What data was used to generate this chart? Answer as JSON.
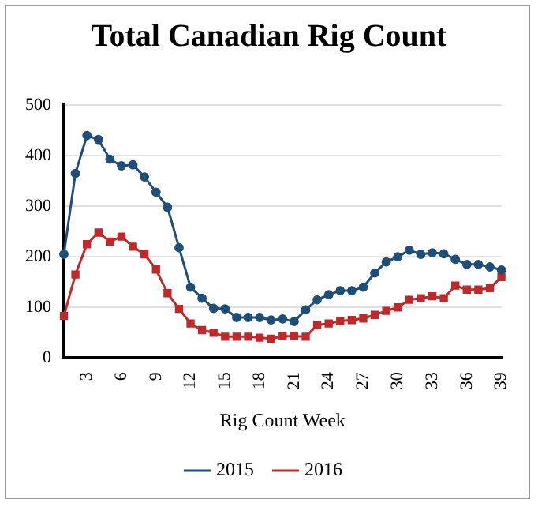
{
  "chart_data": {
    "type": "line",
    "title": "Total Canadian Rig Count",
    "xlabel": "Rig Count Week",
    "categories": [
      null,
      null,
      "3",
      null,
      null,
      "6",
      null,
      null,
      "9",
      null,
      null,
      "12",
      null,
      null,
      "15",
      null,
      null,
      "18",
      null,
      null,
      "21",
      null,
      null,
      "24",
      null,
      null,
      "27",
      null,
      null,
      "30",
      null,
      null,
      "33",
      null,
      null,
      "36",
      null,
      null,
      "39"
    ],
    "series": [
      {
        "name": "2015",
        "color": "#1f4e79",
        "marker": "circle",
        "values": [
          205,
          365,
          440,
          432,
          393,
          380,
          382,
          358,
          328,
          298,
          218,
          140,
          118,
          98,
          97,
          80,
          80,
          80,
          75,
          77,
          72,
          95,
          115,
          125,
          133,
          133,
          140,
          168,
          190,
          200,
          213,
          205,
          208,
          206,
          195,
          185,
          185,
          180,
          174
        ]
      },
      {
        "name": "2016",
        "color": "#c0282a",
        "marker": "square",
        "values": [
          83,
          165,
          225,
          248,
          230,
          240,
          220,
          205,
          175,
          128,
          97,
          68,
          55,
          50,
          42,
          42,
          42,
          40,
          38,
          43,
          43,
          42,
          65,
          68,
          73,
          75,
          78,
          85,
          93,
          100,
          115,
          118,
          122,
          118,
          143,
          135,
          135,
          138,
          160
        ]
      }
    ],
    "ylim": [
      0,
      500
    ],
    "yticks": [
      0,
      100,
      200,
      300,
      400,
      500
    ],
    "grid": "y",
    "legend": "bottom",
    "line_style": "solid"
  }
}
